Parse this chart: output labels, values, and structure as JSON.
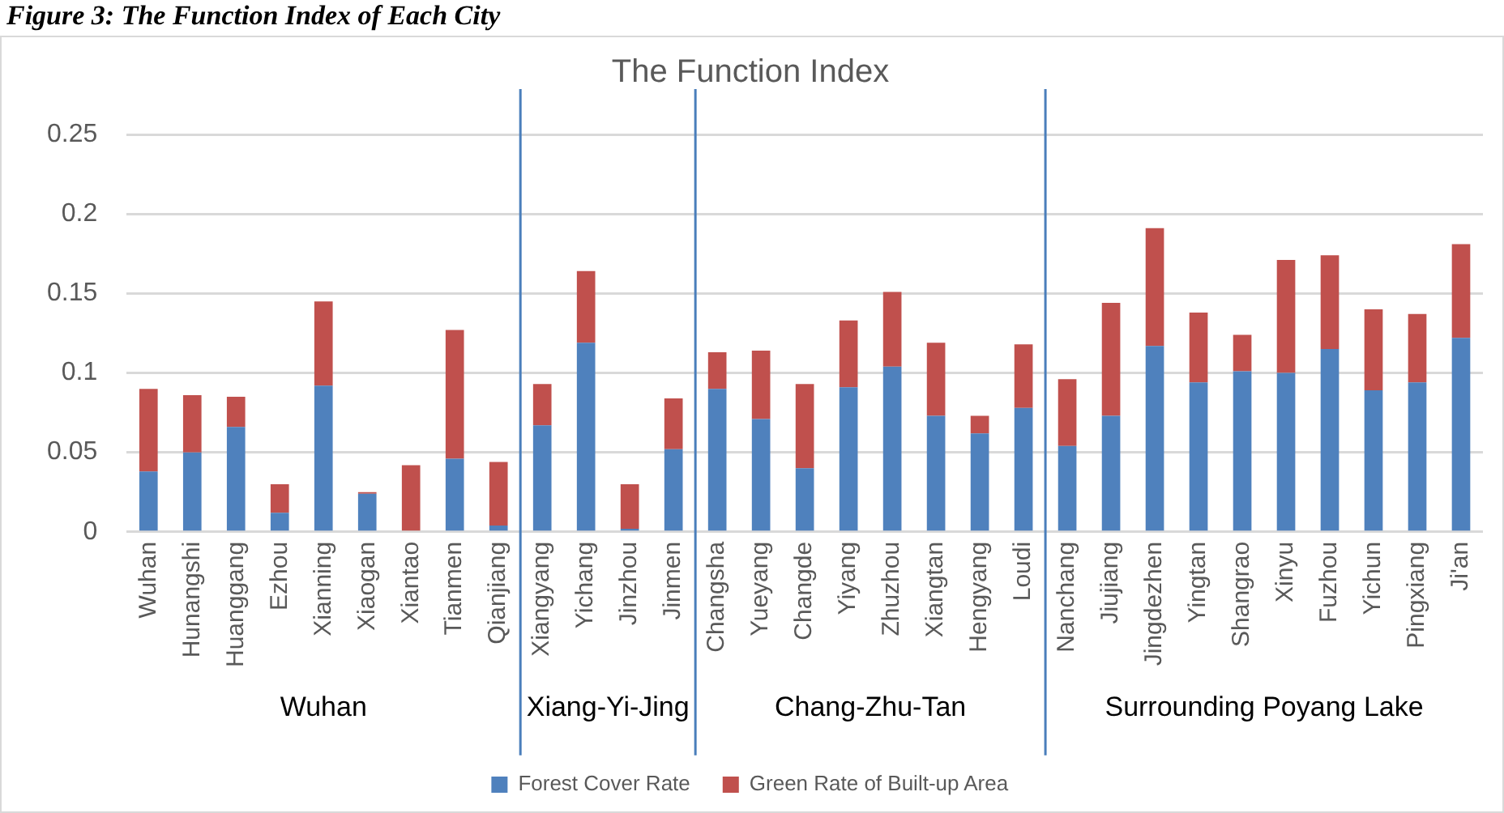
{
  "chart_data": {
    "type": "bar",
    "title": "The Function Index",
    "stacked": true,
    "categories": [
      "Wuhan",
      "Hunangshi",
      "Huanggang",
      "Ezhou",
      "Xianning",
      "Xiaogan",
      "Xiantao",
      "Tianmen",
      "Qianjiang",
      "Xiangyang",
      "Yichang",
      "Jinzhou",
      "Jinmen",
      "Changsha",
      "Yueyang",
      "Changde",
      "Yiyang",
      "Zhuzhou",
      "Xiangtan",
      "Hengyang",
      "Loudi",
      "Nanchang",
      "Jiujiang",
      "Jingdezhen",
      "Yingtan",
      "Shangrao",
      "Xinyu",
      "Fuzhou",
      "Yichun",
      "Pingxiang",
      "Ji'an"
    ],
    "series": [
      {
        "name": "Forest Cover Rate",
        "color": "#4f81bd",
        "values": [
          0.038,
          0.05,
          0.066,
          0.012,
          0.092,
          0.024,
          0,
          0.046,
          0.004,
          0.067,
          0.119,
          0.002,
          0.052,
          0.09,
          0.071,
          0.04,
          0.091,
          0.104,
          0.073,
          0.062,
          0.078,
          0.054,
          0.073,
          0.117,
          0.094,
          0.101,
          0.1,
          0.115,
          0.089,
          0.094,
          0.122
        ]
      },
      {
        "name": "Green Rate of Built-up Area",
        "color": "#c0504d",
        "values": [
          0.052,
          0.036,
          0.019,
          0.018,
          0.053,
          0.001,
          0.042,
          0.081,
          0.04,
          0.026,
          0.045,
          0.028,
          0.032,
          0.023,
          0.043,
          0.053,
          0.042,
          0.047,
          0.046,
          0.011,
          0.04,
          0.042,
          0.071,
          0.074,
          0.044,
          0.023,
          0.071,
          0.059,
          0.051,
          0.043,
          0.059
        ]
      }
    ],
    "ylim": [
      0,
      0.25
    ],
    "yticks": [
      0,
      0.05,
      0.1,
      0.15,
      0.2,
      0.25
    ],
    "grid": "y",
    "legend": "bottom",
    "annotations": [
      "Figure 3: The Function Index of Each City",
      "Wuhan",
      "Xiang-Yi-Jing",
      "Chang-Zhu-Tan",
      "Surrounding Poyang Lake"
    ]
  }
}
